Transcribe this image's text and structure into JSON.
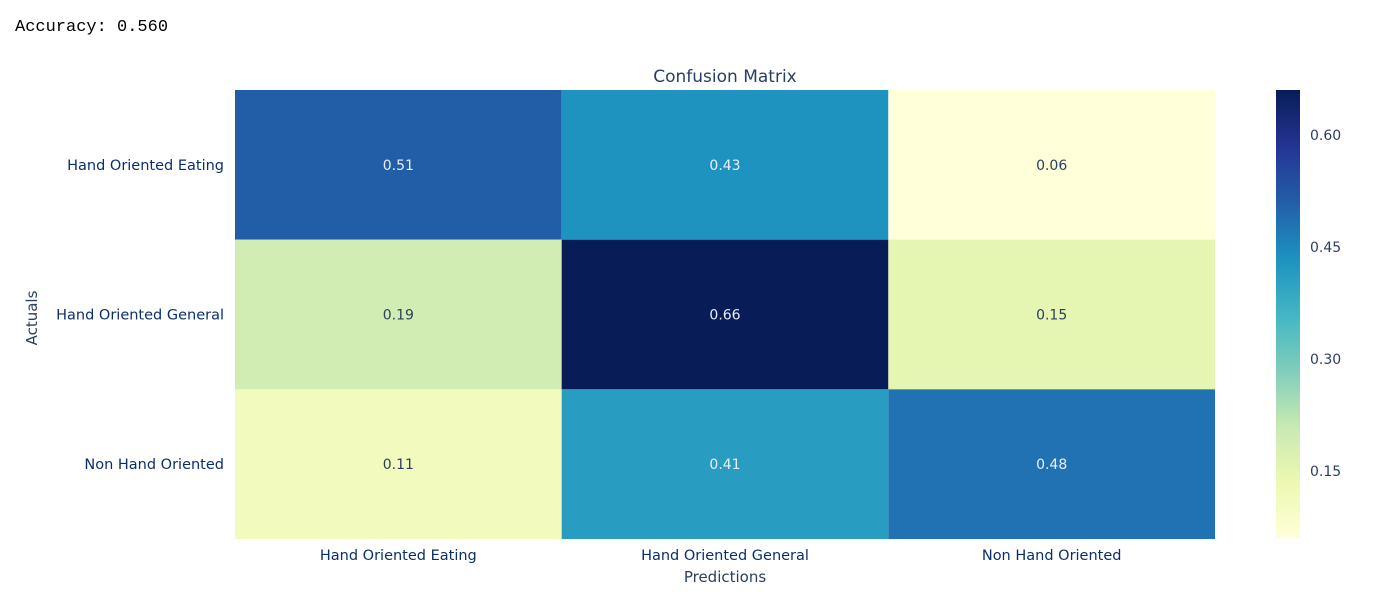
{
  "output": {
    "accuracy_text": "Accuracy: 0.560"
  },
  "chart_data": {
    "type": "heatmap",
    "title": "Confusion Matrix",
    "xlabel": "Predictions",
    "ylabel": "Actuals",
    "x_categories": [
      "Hand Oriented Eating",
      "Hand Oriented General",
      "Non Hand Oriented"
    ],
    "y_categories": [
      "Hand Oriented Eating",
      "Hand Oriented General",
      "Non Hand Oriented"
    ],
    "values": [
      [
        0.51,
        0.43,
        0.06
      ],
      [
        0.19,
        0.66,
        0.15
      ],
      [
        0.11,
        0.41,
        0.48
      ]
    ],
    "value_labels": [
      [
        "0.51",
        "0.43",
        "0.06"
      ],
      [
        "0.19",
        "0.66",
        "0.15"
      ],
      [
        "0.11",
        "0.41",
        "0.48"
      ]
    ],
    "colorscale": {
      "name": "YlGnBu",
      "range": [
        0.06,
        0.66
      ],
      "ticks": [
        0.15,
        0.3,
        0.45,
        0.6
      ],
      "tick_labels": [
        "0.15",
        "0.30",
        "0.45",
        "0.60"
      ],
      "stops": [
        [
          0.0,
          "#ffffd9"
        ],
        [
          0.125,
          "#edf8b1"
        ],
        [
          0.25,
          "#c7e9b4"
        ],
        [
          0.375,
          "#7fcdbb"
        ],
        [
          0.5,
          "#41b6c4"
        ],
        [
          0.625,
          "#1d91c0"
        ],
        [
          0.75,
          "#225ea8"
        ],
        [
          0.875,
          "#253494"
        ],
        [
          1.0,
          "#081d58"
        ]
      ]
    },
    "text_color": "#2a3f5f",
    "label_color": "#0b2f6b"
  }
}
